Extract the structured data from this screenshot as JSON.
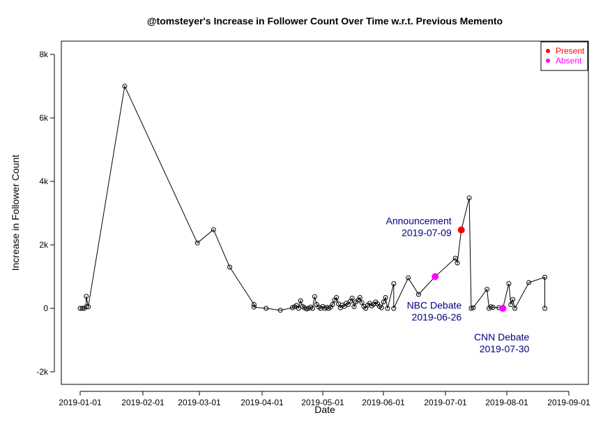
{
  "chart_data": {
    "type": "line",
    "title": "@tomsteyer's Increase in Follower Count Over Time w.r.t. Previous Memento",
    "xlabel": "Date",
    "ylabel": "Increase in Follower Count",
    "xlim": [
      "2019-01-01",
      "2019-09-01"
    ],
    "ylim": [
      -2000,
      8000
    ],
    "x_ticks": [
      "2019-01-01",
      "2019-02-01",
      "2019-03-01",
      "2019-04-01",
      "2019-05-01",
      "2019-06-01",
      "2019-07-01",
      "2019-08-01",
      "2019-09-01"
    ],
    "y_ticks": [
      {
        "value": -2000,
        "label": "-2k"
      },
      {
        "value": 0,
        "label": "0"
      },
      {
        "value": 2000,
        "label": "2k"
      },
      {
        "value": 4000,
        "label": "4k"
      },
      {
        "value": 6000,
        "label": "6k"
      },
      {
        "value": 8000,
        "label": "8k"
      }
    ],
    "grid": false,
    "legend_position": "top-right",
    "series": [
      {
        "points": [
          [
            "2019-01-01",
            0
          ],
          [
            "2019-01-02",
            0
          ],
          [
            "2019-01-03",
            0
          ],
          [
            "2019-01-04",
            50
          ],
          [
            "2019-01-04",
            380
          ],
          [
            "2019-01-05",
            50
          ],
          [
            "2019-01-23",
            7000
          ],
          [
            "2019-02-28",
            2060
          ],
          [
            "2019-03-08",
            2480
          ],
          [
            "2019-03-16",
            1300
          ],
          [
            "2019-03-28",
            120
          ],
          [
            "2019-03-28",
            40
          ],
          [
            "2019-04-03",
            0
          ],
          [
            "2019-04-10",
            -60
          ],
          [
            "2019-04-16",
            20
          ],
          [
            "2019-04-17",
            50
          ],
          [
            "2019-04-18",
            90
          ],
          [
            "2019-04-19",
            0
          ],
          [
            "2019-04-20",
            240
          ],
          [
            "2019-04-21",
            60
          ],
          [
            "2019-04-22",
            20
          ],
          [
            "2019-04-23",
            -20
          ],
          [
            "2019-04-24",
            0
          ],
          [
            "2019-04-25",
            40
          ],
          [
            "2019-04-26",
            0
          ],
          [
            "2019-04-27",
            370
          ],
          [
            "2019-04-28",
            120
          ],
          [
            "2019-04-29",
            40
          ],
          [
            "2019-04-30",
            0
          ],
          [
            "2019-05-01",
            60
          ],
          [
            "2019-05-02",
            0
          ],
          [
            "2019-05-03",
            30
          ],
          [
            "2019-05-04",
            0
          ],
          [
            "2019-05-05",
            40
          ],
          [
            "2019-05-06",
            120
          ],
          [
            "2019-05-07",
            260
          ],
          [
            "2019-05-08",
            340
          ],
          [
            "2019-05-09",
            140
          ],
          [
            "2019-05-10",
            20
          ],
          [
            "2019-05-11",
            100
          ],
          [
            "2019-05-12",
            60
          ],
          [
            "2019-05-13",
            160
          ],
          [
            "2019-05-14",
            120
          ],
          [
            "2019-05-15",
            220
          ],
          [
            "2019-05-16",
            320
          ],
          [
            "2019-05-17",
            50
          ],
          [
            "2019-05-18",
            200
          ],
          [
            "2019-05-19",
            260
          ],
          [
            "2019-05-20",
            340
          ],
          [
            "2019-05-21",
            180
          ],
          [
            "2019-05-22",
            60
          ],
          [
            "2019-05-23",
            0
          ],
          [
            "2019-05-24",
            100
          ],
          [
            "2019-05-25",
            160
          ],
          [
            "2019-05-26",
            80
          ],
          [
            "2019-05-27",
            130
          ],
          [
            "2019-05-28",
            200
          ],
          [
            "2019-05-29",
            140
          ],
          [
            "2019-05-30",
            60
          ],
          [
            "2019-05-31",
            20
          ],
          [
            "2019-06-01",
            200
          ],
          [
            "2019-06-02",
            340
          ],
          [
            "2019-06-03",
            0
          ],
          [
            "2019-06-06",
            780
          ],
          [
            "2019-06-06",
            0
          ],
          [
            "2019-06-13",
            960
          ],
          [
            "2019-06-18",
            440
          ],
          [
            "2019-06-26",
            1000
          ],
          [
            "2019-07-06",
            1580
          ],
          [
            "2019-07-07",
            1430
          ],
          [
            "2019-07-09",
            2470
          ],
          [
            "2019-07-13",
            3480
          ],
          [
            "2019-07-14",
            0
          ],
          [
            "2019-07-15",
            20
          ],
          [
            "2019-07-22",
            600
          ],
          [
            "2019-07-23",
            0
          ],
          [
            "2019-07-24",
            50
          ],
          [
            "2019-07-25",
            30
          ],
          [
            "2019-07-28",
            20
          ],
          [
            "2019-07-30",
            0
          ],
          [
            "2019-08-02",
            780
          ],
          [
            "2019-08-03",
            120
          ],
          [
            "2019-08-04",
            280
          ],
          [
            "2019-08-05",
            0
          ],
          [
            "2019-08-12",
            810
          ],
          [
            "2019-08-20",
            980
          ],
          [
            "2019-08-20",
            0
          ]
        ]
      }
    ],
    "highlights": [
      {
        "x": "2019-07-09",
        "y": 2470,
        "category": "Present",
        "color": "#ff0000"
      },
      {
        "x": "2019-06-26",
        "y": 1000,
        "category": "Absent",
        "color": "#ff00ff"
      },
      {
        "x": "2019-07-30",
        "y": 0,
        "category": "Absent",
        "color": "#ff00ff"
      }
    ],
    "legend": [
      {
        "label": "Present",
        "color": "#ff0000"
      },
      {
        "label": "Absent",
        "color": "#ff00ff"
      }
    ],
    "annotations": [
      {
        "line1": "Announcement",
        "line2": "2019-07-09",
        "anchor": "2019-07-09",
        "placement": "left"
      },
      {
        "line1": "NBC Debate",
        "line2": "2019-06-26",
        "anchor": "2019-06-26",
        "placement": "below"
      },
      {
        "line1": "CNN Debate",
        "line2": "2019-07-30",
        "anchor": "2019-07-30",
        "placement": "below"
      }
    ]
  }
}
